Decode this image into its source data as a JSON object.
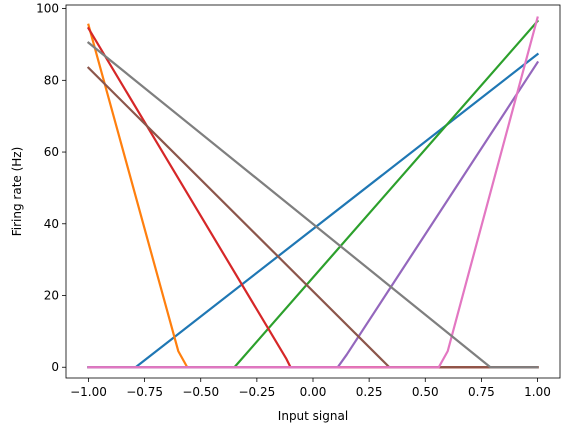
{
  "chart_data": {
    "type": "line",
    "title": "",
    "xlabel": "Input signal",
    "ylabel": "Firing rate (Hz)",
    "xlim": [
      -1.1,
      1.1
    ],
    "ylim": [
      -3,
      101
    ],
    "grid": false,
    "legend": "none",
    "xticks": [
      -1.0,
      -0.75,
      -0.5,
      -0.25,
      0.0,
      0.25,
      0.5,
      0.75,
      1.0
    ],
    "xtick_labels": [
      "−1.00",
      "−0.75",
      "−0.50",
      "−0.25",
      "0.00",
      "0.25",
      "0.50",
      "0.75",
      "1.00"
    ],
    "yticks": [
      0,
      20,
      40,
      60,
      80,
      100
    ],
    "ytick_labels": [
      "0",
      "20",
      "40",
      "60",
      "80",
      "100"
    ],
    "series": [
      {
        "color": "#1f77b4",
        "points": [
          [
            -1.0,
            0
          ],
          [
            -0.79,
            0
          ],
          [
            1.0,
            87.3
          ]
        ]
      },
      {
        "color": "#ff7f0e",
        "points": [
          [
            -1.0,
            95.5
          ],
          [
            -0.6,
            4.5
          ],
          [
            -0.56,
            0
          ],
          [
            1.0,
            0
          ]
        ]
      },
      {
        "color": "#2ca02c",
        "points": [
          [
            -1.0,
            0
          ],
          [
            -0.35,
            0
          ],
          [
            1.0,
            96.5
          ]
        ]
      },
      {
        "color": "#d62728",
        "points": [
          [
            -1.0,
            94.5
          ],
          [
            -0.12,
            2.5
          ],
          [
            -0.1,
            0
          ],
          [
            1.0,
            0
          ]
        ]
      },
      {
        "color": "#9467bd",
        "points": [
          [
            -1.0,
            0
          ],
          [
            0.11,
            0
          ],
          [
            0.15,
            3.5
          ],
          [
            1.0,
            85.0
          ]
        ]
      },
      {
        "color": "#8c564b",
        "points": [
          [
            -1.0,
            83.5
          ],
          [
            0.34,
            0
          ],
          [
            1.0,
            0
          ]
        ]
      },
      {
        "color": "#e377c2",
        "points": [
          [
            -1.0,
            0
          ],
          [
            0.56,
            0
          ],
          [
            0.6,
            4.5
          ],
          [
            1.0,
            97.5
          ]
        ]
      },
      {
        "color": "#7f7f7f",
        "points": [
          [
            -1.0,
            90.5
          ],
          [
            0.79,
            0
          ],
          [
            1.0,
            0
          ]
        ]
      }
    ]
  }
}
